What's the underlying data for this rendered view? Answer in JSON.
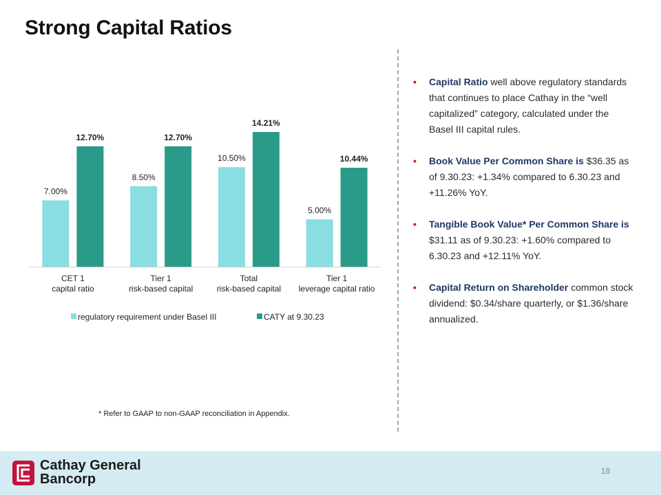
{
  "slide": {
    "title": "Strong Capital Ratios",
    "page_number": "18",
    "footnote": "* Refer to GAAP  to non-GAAP  reconciliation in Appendix."
  },
  "chart_data": {
    "type": "bar",
    "categories": [
      [
        "CET 1",
        "capital ratio"
      ],
      [
        "Tier 1",
        "risk-based capital"
      ],
      [
        "Total",
        "risk-based capital"
      ],
      [
        "Tier 1",
        "leverage capital ratio"
      ]
    ],
    "series": [
      {
        "name": "regulatory requirement under Basel III",
        "values": [
          7.0,
          8.5,
          10.5,
          5.0
        ],
        "labels": [
          "7.00%",
          "8.50%",
          "10.50%",
          "5.00%"
        ],
        "color": "#8adde2",
        "label_bold": false
      },
      {
        "name": "CATY at 9.30.23",
        "values": [
          12.7,
          12.7,
          14.21,
          10.44
        ],
        "labels": [
          "12.70%",
          "12.70%",
          "14.21%",
          "10.44%"
        ],
        "color": "#2a9a89",
        "label_bold": true
      }
    ],
    "ylim": [
      0,
      14.21
    ],
    "grid": false,
    "legend": "bottom",
    "title": "",
    "xlabel": "",
    "ylabel": ""
  },
  "bullets": [
    {
      "bold": "Capital Ratio",
      "text": " well above regulatory standards that  continues to place Cathay in the “well capitalized” category, calculated under the Basel III  capital rules."
    },
    {
      "bold": "Book Value Per Common Share is",
      "text": " $36.35 as of 9.30.23: +1.34% compared to 6.30.23 and +11.26% YoY."
    },
    {
      "bold": "Tangible Book Value* Per Common Share is",
      "text": " $31.11 as of 9.30.23: +1.60% compared to 6.30.23 and +12.11% YoY."
    },
    {
      "bold": "Capital Return on Shareholder",
      "text": " common stock dividend: $0.34/share quarterly,  or $1.36/share annualized."
    }
  ],
  "logo": {
    "line1": "Cathay General",
    "line2": "Bancorp",
    "color": "#c0143c"
  }
}
